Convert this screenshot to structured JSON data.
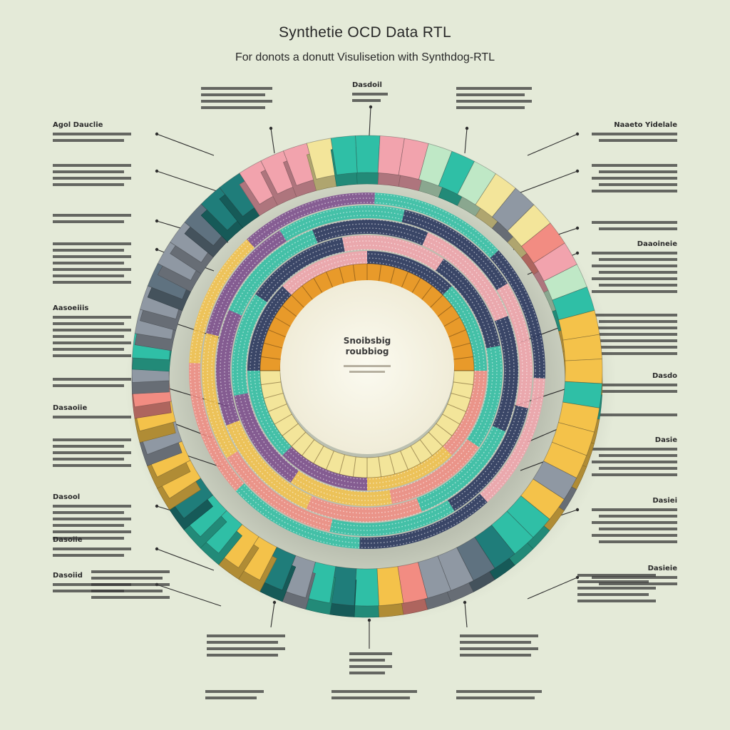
{
  "title": "Synthetie OCD Data RTL",
  "subtitle": "For donots a donutt Visulisetion with Synthdog-RTL",
  "center_label": [
    "Snoibsbig",
    "roubbiog"
  ],
  "colors": {
    "background": "#e4ead8",
    "teal": "#2fbfa6",
    "dark_teal": "#1f7d7a",
    "pink": "#f2a3ad",
    "salmon": "#f28c82",
    "yellow": "#f4c24a",
    "light_yellow": "#f3e59a",
    "mint": "#bfe8c6",
    "gray": "#8f98a3",
    "blue_gray": "#5f7280",
    "orange": "#e89a2a",
    "navy": "#23305a",
    "purple": "#7a4a8c"
  },
  "chart_data": {
    "type": "donut",
    "rings": [
      {
        "name": "outer ring",
        "segments": [
          {
            "color": "teal",
            "value": 1
          },
          {
            "color": "pink",
            "value": 1
          },
          {
            "color": "pink",
            "value": 1
          },
          {
            "color": "mint",
            "value": 1
          },
          {
            "color": "teal",
            "value": 1
          },
          {
            "color": "mint",
            "value": 1
          },
          {
            "color": "light_yellow",
            "value": 1
          },
          {
            "color": "gray",
            "value": 1
          },
          {
            "color": "light_yellow",
            "value": 1
          },
          {
            "color": "salmon",
            "value": 1
          },
          {
            "color": "pink",
            "value": 1
          },
          {
            "color": "mint",
            "value": 1
          },
          {
            "color": "teal",
            "value": 1
          },
          {
            "color": "yellow",
            "value": 1
          },
          {
            "color": "yellow",
            "value": 1
          },
          {
            "color": "yellow",
            "value": 1
          },
          {
            "color": "teal",
            "value": 1
          },
          {
            "color": "yellow",
            "value": 1
          },
          {
            "color": "yellow",
            "value": 1
          },
          {
            "color": "yellow",
            "value": 1
          },
          {
            "color": "gray",
            "value": 1
          },
          {
            "color": "yellow",
            "value": 1
          },
          {
            "color": "teal",
            "value": 1
          },
          {
            "color": "teal",
            "value": 1
          },
          {
            "color": "dark_teal",
            "value": 1
          },
          {
            "color": "blue_gray",
            "value": 1
          },
          {
            "color": "gray",
            "value": 1
          },
          {
            "color": "gray",
            "value": 1
          },
          {
            "color": "salmon",
            "value": 1
          },
          {
            "color": "yellow",
            "value": 1
          },
          {
            "color": "teal",
            "value": 1
          },
          {
            "color": "dark_teal",
            "value": 1
          },
          {
            "color": "teal",
            "value": 1
          },
          {
            "color": "gray",
            "value": 1
          },
          {
            "color": "dark_teal",
            "value": 1
          },
          {
            "color": "yellow",
            "value": 1
          },
          {
            "color": "yellow",
            "value": 1
          },
          {
            "color": "teal",
            "value": 1
          },
          {
            "color": "teal",
            "value": 1
          },
          {
            "color": "dark_teal",
            "value": 1
          },
          {
            "color": "yellow",
            "value": 1
          },
          {
            "color": "yellow",
            "value": 1
          },
          {
            "color": "gray",
            "value": 1
          },
          {
            "color": "yellow",
            "value": 1
          },
          {
            "color": "salmon",
            "value": 1
          },
          {
            "color": "gray",
            "value": 1
          },
          {
            "color": "teal",
            "value": 1
          },
          {
            "color": "gray",
            "value": 1
          },
          {
            "color": "gray",
            "value": 1
          },
          {
            "color": "blue_gray",
            "value": 1
          },
          {
            "color": "gray",
            "value": 1
          },
          {
            "color": "gray",
            "value": 1
          },
          {
            "color": "blue_gray",
            "value": 1
          },
          {
            "color": "dark_teal",
            "value": 1
          },
          {
            "color": "dark_teal",
            "value": 1
          },
          {
            "color": "pink",
            "value": 1
          },
          {
            "color": "pink",
            "value": 1
          },
          {
            "color": "pink",
            "value": 1
          },
          {
            "color": "light_yellow",
            "value": 1
          },
          {
            "color": "teal",
            "value": 1
          }
        ]
      },
      {
        "name": "middle dotted ring",
        "segments": [
          {
            "color": "navy",
            "value": 1
          },
          {
            "color": "teal",
            "value": 1
          },
          {
            "color": "salmon",
            "value": 1
          },
          {
            "color": "yellow",
            "value": 1
          },
          {
            "color": "purple",
            "value": 1
          },
          {
            "color": "teal",
            "value": 1
          },
          {
            "color": "navy",
            "value": 1
          },
          {
            "color": "pink",
            "value": 1
          }
        ]
      },
      {
        "name": "inner ring",
        "segments": [
          {
            "color": "orange",
            "value": 1
          },
          {
            "color": "light_yellow",
            "value": 1
          }
        ]
      }
    ],
    "annotations_left": [
      {
        "head": "Agol Dauclie"
      },
      {
        "head": ""
      },
      {
        "head": ""
      },
      {
        "head": ""
      },
      {
        "head": "Aasoeiiis"
      },
      {
        "head": ""
      },
      {
        "head": "Dasaoiie"
      },
      {
        "head": ""
      },
      {
        "head": "Dasool"
      },
      {
        "head": "Dasoiie"
      },
      {
        "head": "Dasoiid"
      }
    ],
    "annotations_right": [
      {
        "head": "Naaeto Yidelale"
      },
      {
        "head": ""
      },
      {
        "head": ""
      },
      {
        "head": "Daaoineie"
      },
      {
        "head": ""
      },
      {
        "head": "Dasdo"
      },
      {
        "head": ""
      },
      {
        "head": "Dasie"
      },
      {
        "head": "Dasiei"
      },
      {
        "head": "Dasieie"
      }
    ],
    "annotations_top": [
      {
        "head": "Dasdoil"
      }
    ]
  }
}
